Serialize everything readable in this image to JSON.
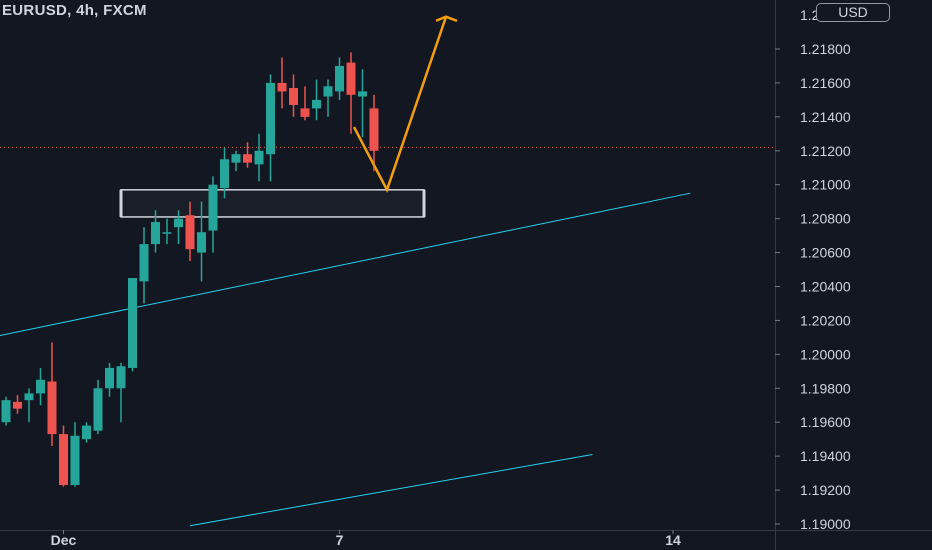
{
  "header": {
    "symbol": "EURUSD, 4h, FXCM",
    "currency": "USD"
  },
  "colors": {
    "background": "#131722",
    "up": "#26a69a",
    "down": "#ef5350",
    "trendline": "#22d3ee",
    "projection": "#f59e0b",
    "zone": "#d1d4dc",
    "text": "#d1d4dc",
    "grid": "#2a2e39",
    "price_line": "#ef5350"
  },
  "chart_data": {
    "type": "candlestick",
    "symbol": "EURUSD",
    "timeframe": "4h",
    "source": "FXCM",
    "y_axis_ticks": [
      "1.19000",
      "1.19200",
      "1.19400",
      "1.19600",
      "1.19800",
      "1.20000",
      "1.20200",
      "1.20400",
      "1.20600",
      "1.20800",
      "1.21000",
      "1.21200",
      "1.21400",
      "1.21600",
      "1.21800"
    ],
    "ylim": [
      1.1896,
      1.2204
    ],
    "x_axis_labels": [
      {
        "label": "Dec",
        "bar": 5
      },
      {
        "label": "7",
        "bar": 29
      },
      {
        "label": "14",
        "bar": 58
      }
    ],
    "current_price": 1.2122,
    "candles": [
      {
        "o": 1.196,
        "h": 1.1975,
        "l": 1.1958,
        "c": 1.1973
      },
      {
        "o": 1.1972,
        "h": 1.1976,
        "l": 1.1965,
        "c": 1.1968
      },
      {
        "o": 1.1973,
        "h": 1.198,
        "l": 1.196,
        "c": 1.1977
      },
      {
        "o": 1.1977,
        "h": 1.1992,
        "l": 1.197,
        "c": 1.1985
      },
      {
        "o": 1.1984,
        "h": 1.2007,
        "l": 1.1946,
        "c": 1.1953
      },
      {
        "o": 1.1953,
        "h": 1.1958,
        "l": 1.1922,
        "c": 1.1923
      },
      {
        "o": 1.1923,
        "h": 1.196,
        "l": 1.1922,
        "c": 1.1952
      },
      {
        "o": 1.195,
        "h": 1.196,
        "l": 1.1948,
        "c": 1.1958
      },
      {
        "o": 1.1955,
        "h": 1.1985,
        "l": 1.1953,
        "c": 1.198
      },
      {
        "o": 1.198,
        "h": 1.1995,
        "l": 1.1975,
        "c": 1.1992
      },
      {
        "o": 1.198,
        "h": 1.1995,
        "l": 1.196,
        "c": 1.1993
      },
      {
        "o": 1.1992,
        "h": 1.2045,
        "l": 1.199,
        "c": 1.2045
      },
      {
        "o": 1.2043,
        "h": 1.2075,
        "l": 1.203,
        "c": 1.2065
      },
      {
        "o": 1.2065,
        "h": 1.2085,
        "l": 1.206,
        "c": 1.2078
      },
      {
        "o": 1.2072,
        "h": 1.208,
        "l": 1.2065,
        "c": 1.2072
      },
      {
        "o": 1.2075,
        "h": 1.2085,
        "l": 1.2065,
        "c": 1.208
      },
      {
        "o": 1.2082,
        "h": 1.209,
        "l": 1.2055,
        "c": 1.2062
      },
      {
        "o": 1.206,
        "h": 1.209,
        "l": 1.2043,
        "c": 1.2072
      },
      {
        "o": 1.2073,
        "h": 1.2105,
        "l": 1.206,
        "c": 1.21
      },
      {
        "o": 1.2098,
        "h": 1.2122,
        "l": 1.2092,
        "c": 1.2115
      },
      {
        "o": 1.2113,
        "h": 1.212,
        "l": 1.2108,
        "c": 1.2118
      },
      {
        "o": 1.2118,
        "h": 1.2125,
        "l": 1.211,
        "c": 1.2113
      },
      {
        "o": 1.2112,
        "h": 1.213,
        "l": 1.2102,
        "c": 1.212
      },
      {
        "o": 1.2118,
        "h": 1.2165,
        "l": 1.2102,
        "c": 1.216
      },
      {
        "o": 1.216,
        "h": 1.2175,
        "l": 1.2145,
        "c": 1.2155
      },
      {
        "o": 1.2157,
        "h": 1.2165,
        "l": 1.214,
        "c": 1.2147
      },
      {
        "o": 1.2145,
        "h": 1.2158,
        "l": 1.2138,
        "c": 1.214
      },
      {
        "o": 1.2145,
        "h": 1.2162,
        "l": 1.2138,
        "c": 1.215
      },
      {
        "o": 1.2152,
        "h": 1.2162,
        "l": 1.214,
        "c": 1.2158
      },
      {
        "o": 1.2155,
        "h": 1.2175,
        "l": 1.215,
        "c": 1.217
      },
      {
        "o": 1.2172,
        "h": 1.2178,
        "l": 1.213,
        "c": 1.2153
      },
      {
        "o": 1.2152,
        "h": 1.2168,
        "l": 1.2128,
        "c": 1.2155
      },
      {
        "o": 1.2145,
        "h": 1.2153,
        "l": 1.2108,
        "c": 1.212
      }
    ],
    "drawings": {
      "zone": {
        "bar_start": 19,
        "bar_end": 59,
        "price_top": 1.2097,
        "price_bottom": 1.2081
      },
      "trendlines": [
        {
          "name": "upper channel",
          "p1": {
            "bar": -8.5,
            "price": 1.2
          },
          "p2": {
            "bar": 59.5,
            "price": 1.2095
          }
        },
        {
          "name": "lower channel",
          "p1": {
            "bar": 16,
            "price": 1.1899
          },
          "p2": {
            "bar": 51,
            "price": 1.1941
          }
        }
      ],
      "projection": [
        {
          "bar": 41,
          "price": 1.2134
        },
        {
          "bar": 45.5,
          "price": 1.2097
        },
        {
          "bar": 53,
          "price": 1.2199
        }
      ]
    }
  }
}
